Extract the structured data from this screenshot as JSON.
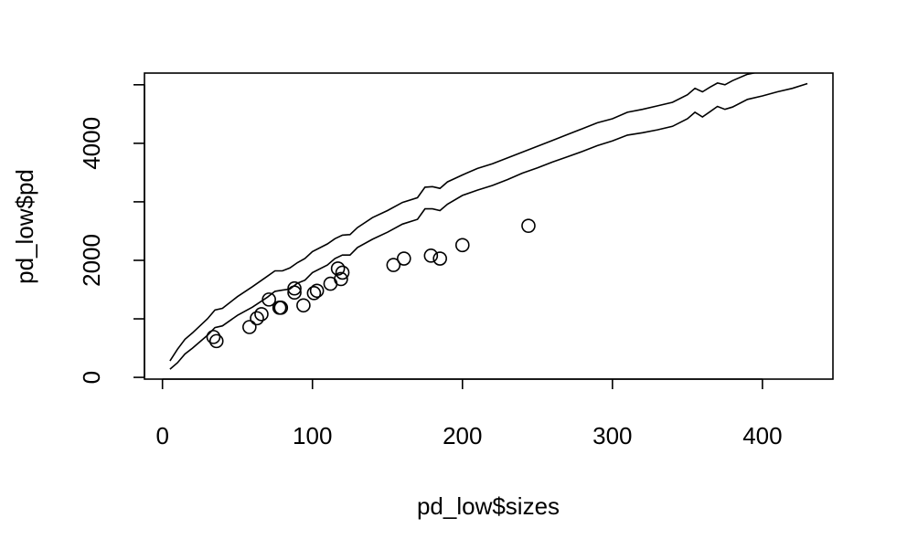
{
  "chart_data": {
    "type": "scatter",
    "xlabel": "pd_low$sizes",
    "ylabel": "pd_low$pd",
    "xlim": [
      -12,
      447
    ],
    "ylim": [
      -30,
      5200
    ],
    "x_ticks": [
      0,
      100,
      200,
      300,
      400
    ],
    "y_ticks": [
      0,
      1000,
      2000,
      3000,
      4000,
      5000
    ],
    "x_tick_labels": [
      "0",
      "100",
      "200",
      "300",
      "400"
    ],
    "y_tick_labels": [
      "0",
      "",
      "2000",
      "",
      "4000",
      ""
    ],
    "grid": false,
    "points": {
      "x": [
        34,
        36,
        58,
        63,
        66,
        71,
        78,
        79,
        88,
        88,
        94,
        101,
        103,
        112,
        117,
        119,
        120,
        154,
        161,
        179,
        185,
        200,
        244
      ],
      "y": [
        690,
        620,
        860,
        1010,
        1080,
        1330,
        1190,
        1190,
        1450,
        1520,
        1230,
        1440,
        1480,
        1600,
        1860,
        1680,
        1790,
        1920,
        2030,
        2080,
        2030,
        2260,
        2590
      ]
    },
    "series": [
      {
        "x": [
          5,
          10,
          15,
          20,
          30,
          35,
          40,
          50,
          60,
          70,
          75,
          80,
          85,
          90,
          95,
          100,
          110,
          115,
          120,
          125,
          130,
          140,
          150,
          160,
          170,
          175,
          180,
          185,
          190,
          200,
          210,
          220,
          230,
          240,
          250,
          260,
          270,
          280,
          290,
          300,
          310,
          320,
          330,
          340,
          350,
          355,
          360,
          365,
          370,
          375,
          380,
          390,
          400,
          410,
          420
        ],
        "y": [
          280,
          480,
          650,
          760,
          1000,
          1150,
          1180,
          1380,
          1550,
          1730,
          1820,
          1820,
          1870,
          1960,
          2030,
          2150,
          2280,
          2370,
          2430,
          2440,
          2560,
          2730,
          2850,
          2990,
          3070,
          3250,
          3260,
          3230,
          3340,
          3460,
          3570,
          3650,
          3750,
          3850,
          3950,
          4050,
          4150,
          4250,
          4350,
          4420,
          4530,
          4580,
          4640,
          4700,
          4830,
          4940,
          4880,
          4960,
          5030,
          5000,
          5070,
          5180,
          5230,
          5250,
          5270
        ]
      },
      {
        "x": [
          5,
          10,
          15,
          20,
          30,
          35,
          40,
          50,
          60,
          70,
          75,
          80,
          85,
          90,
          95,
          100,
          110,
          115,
          120,
          125,
          130,
          140,
          150,
          160,
          170,
          175,
          180,
          185,
          190,
          200,
          210,
          220,
          230,
          240,
          250,
          260,
          270,
          280,
          290,
          300,
          310,
          320,
          330,
          340,
          350,
          355,
          360,
          365,
          370,
          375,
          380,
          390,
          400,
          410,
          420,
          430
        ],
        "y": [
          140,
          250,
          400,
          500,
          720,
          850,
          880,
          1060,
          1200,
          1370,
          1470,
          1490,
          1510,
          1610,
          1660,
          1790,
          1920,
          2030,
          2090,
          2090,
          2220,
          2360,
          2480,
          2620,
          2700,
          2880,
          2880,
          2850,
          2960,
          3110,
          3200,
          3280,
          3380,
          3490,
          3580,
          3680,
          3770,
          3860,
          3960,
          4040,
          4140,
          4180,
          4230,
          4290,
          4420,
          4530,
          4450,
          4540,
          4630,
          4580,
          4620,
          4750,
          4810,
          4880,
          4940,
          5020
        ]
      }
    ]
  }
}
